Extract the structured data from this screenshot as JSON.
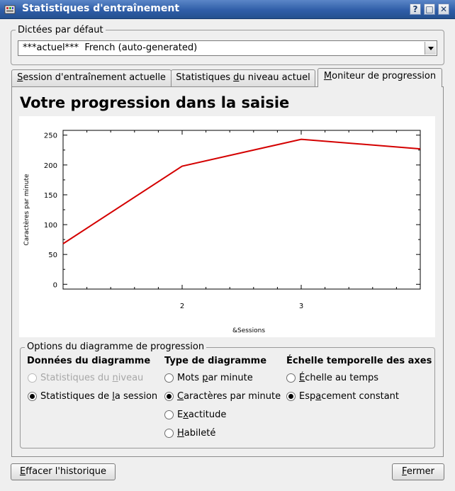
{
  "window": {
    "title": "Statistiques d'entraînement",
    "buttons": {
      "help": "?",
      "maximize": "□",
      "close": "✕"
    }
  },
  "dictation_group": {
    "title": "Dictées par défaut",
    "selected": "***actuel***  French (auto-generated)"
  },
  "tabs": [
    {
      "label": "Session d'entraînement actuelle",
      "pre": "",
      "u": "S",
      "post": "ession d'entraînement actuelle"
    },
    {
      "label": "Statistiques du niveau actuel",
      "pre": "Statistiques ",
      "u": "d",
      "post": "u niveau actuel"
    },
    {
      "label": "Moniteur de progression",
      "pre": "",
      "u": "M",
      "post": "oniteur de progression"
    }
  ],
  "main": {
    "heading": "Votre progression dans la saisie"
  },
  "chart_data": {
    "type": "line",
    "title": "",
    "xlabel": "&Sessions",
    "ylabel": "Caractères par minute",
    "xlim": [
      1,
      4
    ],
    "ylim": [
      -8,
      258
    ],
    "xticks": [
      2,
      3
    ],
    "yticks": [
      0,
      50,
      100,
      150,
      200,
      250
    ],
    "series": [
      {
        "color": "#d40000",
        "x": [
          1,
          2,
          3,
          4
        ],
        "y": [
          68,
          198,
          243,
          227
        ]
      }
    ],
    "grid": false
  },
  "options": {
    "title": "Options du diagramme de progression",
    "data_col": {
      "heading": "Données du diagramme",
      "items": [
        {
          "label": "Statistiques du niveau",
          "pre": "Statistiques du ",
          "u": "n",
          "post": "iveau",
          "checked": false,
          "disabled": true
        },
        {
          "label": "Statistiques de la session",
          "pre": "Statistiques de ",
          "u": "l",
          "post": "a session",
          "checked": true,
          "disabled": false
        }
      ]
    },
    "type_col": {
      "heading": "Type de diagramme",
      "items": [
        {
          "label": "Mots par minute",
          "pre": "Mots ",
          "u": "p",
          "post": "ar minute",
          "checked": false
        },
        {
          "label": "Caractères par minute",
          "pre": "",
          "u": "C",
          "post": "aractères par minute",
          "checked": true
        },
        {
          "label": "Exactitude",
          "pre": "E",
          "u": "x",
          "post": "actitude",
          "checked": false
        },
        {
          "label": "Habileté",
          "pre": "",
          "u": "H",
          "post": "abileté",
          "checked": false
        }
      ]
    },
    "scale_col": {
      "heading": "Échelle temporelle des axes",
      "items": [
        {
          "label": "Échelle au temps",
          "pre": "",
          "u": "É",
          "post": "chelle au temps",
          "checked": false
        },
        {
          "label": "Espacement constant",
          "pre": "Esp",
          "u": "a",
          "post": "cement constant",
          "checked": true
        }
      ]
    }
  },
  "footer": {
    "clear": {
      "label": "Effacer l'historique",
      "u": "E",
      "post": "ffacer l'historique"
    },
    "close": {
      "label": "Fermer",
      "u": "F",
      "post": "ermer"
    }
  },
  "colors": {
    "titlebar": "#2f5ea8",
    "line": "#d40000"
  }
}
